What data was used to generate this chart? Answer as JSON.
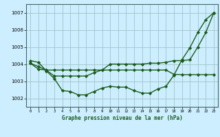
{
  "title": "Graphe pression niveau de la mer (hPa)",
  "background_color": "#cceeff",
  "grid_color": "#99bbbb",
  "line_color": "#1a5c1a",
  "xlim": [
    -0.5,
    23.5
  ],
  "ylim": [
    1001.5,
    1007.5
  ],
  "yticks": [
    1002,
    1003,
    1004,
    1005,
    1006,
    1007
  ],
  "xticks": [
    0,
    1,
    2,
    3,
    4,
    5,
    6,
    7,
    8,
    9,
    10,
    11,
    12,
    13,
    14,
    15,
    16,
    17,
    18,
    19,
    20,
    21,
    22,
    23
  ],
  "series": [
    {
      "x": [
        0,
        1,
        2,
        3,
        4,
        5,
        6,
        7,
        8,
        9,
        10,
        11,
        12,
        13,
        14,
        15,
        16,
        17,
        18,
        19,
        20,
        21,
        22,
        23
      ],
      "y": [
        1004.2,
        1004.1,
        1003.6,
        1003.15,
        1002.45,
        1002.4,
        1002.2,
        1002.2,
        1002.4,
        1002.6,
        1002.7,
        1002.65,
        1002.65,
        1002.45,
        1002.3,
        1002.3,
        1002.55,
        1002.7,
        1003.35,
        1004.25,
        1004.95,
        1005.85,
        1006.6,
        1007.0
      ],
      "marker": "D",
      "marker_size": 2.2,
      "linewidth": 1.0
    },
    {
      "x": [
        0,
        1,
        2,
        3,
        4,
        5,
        6,
        7,
        8,
        9,
        10,
        11,
        12,
        13,
        14,
        15,
        16,
        17,
        18,
        19,
        20,
        21,
        22,
        23
      ],
      "y": [
        1004.05,
        1003.7,
        1003.65,
        1003.65,
        1003.65,
        1003.65,
        1003.65,
        1003.65,
        1003.65,
        1003.65,
        1003.65,
        1003.65,
        1003.65,
        1003.65,
        1003.65,
        1003.65,
        1003.65,
        1003.65,
        1003.4,
        1003.38,
        1003.38,
        1003.38,
        1003.38,
        1003.38
      ],
      "marker": "D",
      "marker_size": 2.2,
      "linewidth": 1.0
    },
    {
      "x": [
        0,
        1,
        2,
        3,
        4,
        5,
        6,
        7,
        8,
        9,
        10,
        11,
        12,
        13,
        14,
        15,
        16,
        17,
        18,
        19,
        20,
        21,
        22,
        23
      ],
      "y": [
        1004.05,
        1003.85,
        1003.65,
        1003.3,
        1003.3,
        1003.3,
        1003.3,
        1003.3,
        1003.5,
        1003.65,
        1004.0,
        1004.0,
        1004.0,
        1004.0,
        1004.0,
        1004.05,
        1004.05,
        1004.1,
        1004.2,
        1004.2,
        1004.25,
        1005.0,
        1005.85,
        1007.0
      ],
      "marker": "D",
      "marker_size": 2.2,
      "linewidth": 1.0
    }
  ]
}
